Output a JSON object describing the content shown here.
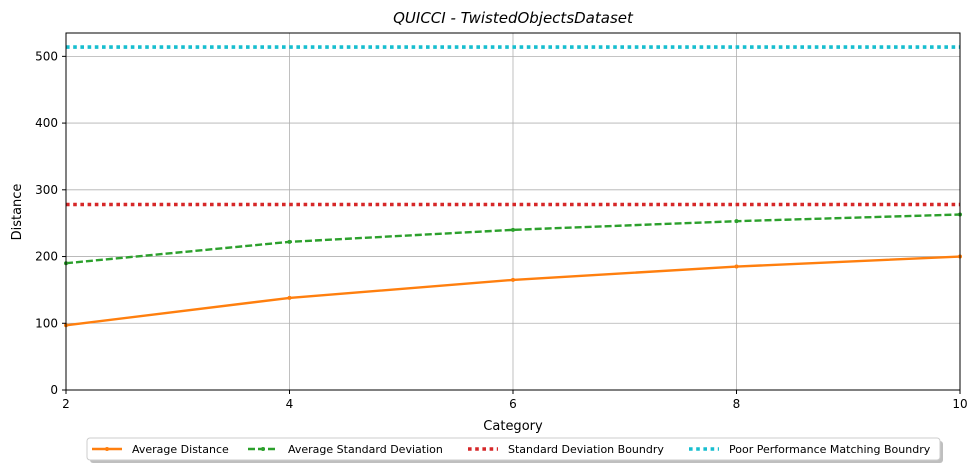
{
  "chart_data": {
    "type": "line",
    "title": "QUICCI - TwistedObjectsDataset",
    "xlabel": "Category",
    "ylabel": "Distance",
    "xlim": [
      2,
      10
    ],
    "ylim": [
      0,
      535
    ],
    "xticks": [
      2,
      4,
      6,
      8,
      10
    ],
    "yticks": [
      0,
      100,
      200,
      300,
      400,
      500
    ],
    "grid": true,
    "legend_position": "bottom-center",
    "series": [
      {
        "name": "Average Distance",
        "color": "#ff7f0e",
        "style": "solid-marker",
        "x": [
          2,
          4,
          6,
          8,
          10
        ],
        "y": [
          97,
          138,
          165,
          185,
          200
        ]
      },
      {
        "name": "Average Standard Deviation",
        "color": "#2ca02c",
        "style": "dashed-marker",
        "x": [
          2,
          4,
          6,
          8,
          10
        ],
        "y": [
          190,
          222,
          240,
          253,
          263
        ]
      },
      {
        "name": "Standard Deviation Boundry",
        "color": "#d62728",
        "style": "dotted",
        "x": [
          2,
          10
        ],
        "y": [
          278,
          278
        ]
      },
      {
        "name": "Poor Performance Matching Boundry",
        "color": "#17becf",
        "style": "dotted",
        "x": [
          2,
          10
        ],
        "y": [
          514,
          514
        ]
      }
    ]
  }
}
